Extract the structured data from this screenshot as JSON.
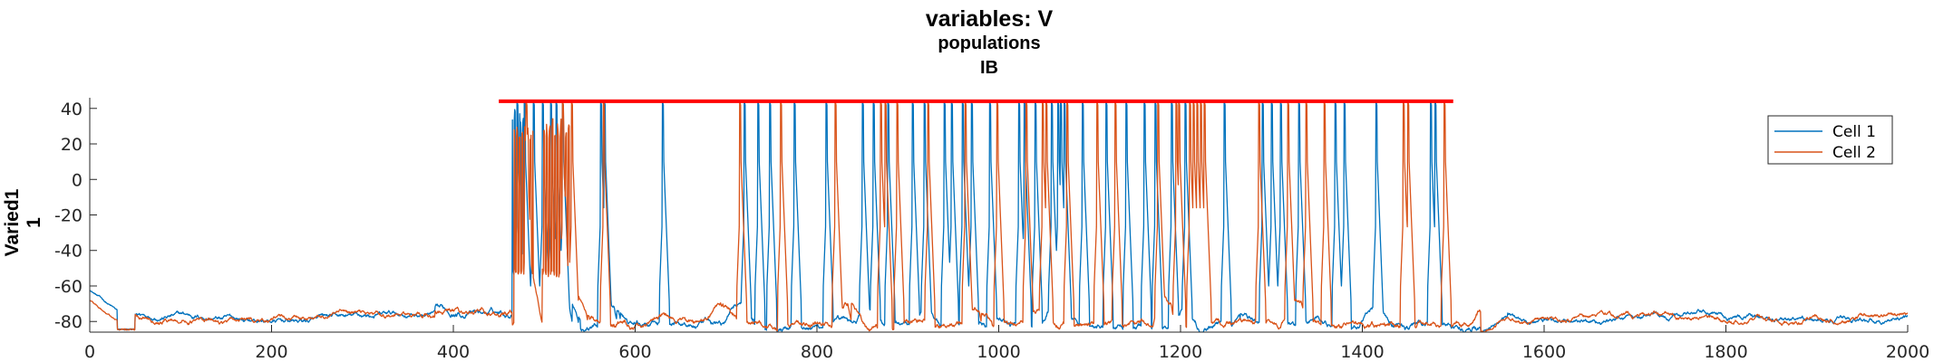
{
  "chart_data": {
    "type": "line",
    "title": "variables: V",
    "subtitle_lines": [
      "populations",
      "IB"
    ],
    "ylabel_lines": [
      "Varied1",
      "1"
    ],
    "xlabel": "",
    "xlim": [
      0,
      2000
    ],
    "ylim": [
      -86,
      46
    ],
    "xticks": [
      0,
      200,
      400,
      600,
      800,
      1000,
      1200,
      1400,
      1600,
      1800,
      2000
    ],
    "yticks": [
      40,
      20,
      0,
      -20,
      -40,
      -60,
      -80
    ],
    "grid": false,
    "legend_position": "top-right",
    "colors": {
      "cell1": "#0072BD",
      "cell2": "#D95319",
      "stim_bar": "#FF0000",
      "axis": "#262626"
    },
    "stimulus_bar": {
      "x": [
        450,
        1500
      ],
      "y": 44
    },
    "baseline_level": -78,
    "active_window": [
      465,
      1500
    ],
    "series": [
      {
        "name": "Cell 1",
        "color": "#0072BD",
        "spike_peak": 44,
        "spike_times": [
          470,
          478,
          488,
          498,
          507,
          513,
          520,
          562,
          566,
          630,
          720,
          735,
          748,
          775,
          810,
          850,
          862,
          878,
          905,
          918,
          940,
          948,
          960,
          970,
          990,
          1022,
          1028,
          1040,
          1058,
          1065,
          1068,
          1072,
          1092,
          1118,
          1140,
          1160,
          1172,
          1190,
          1205,
          1248,
          1290,
          1300,
          1310,
          1330,
          1370,
          1380,
          1415,
          1475,
          1480
        ],
        "burst": {
          "x": [
            465,
            520
          ],
          "envelope": [
            30,
            42
          ]
        }
      },
      {
        "name": "Cell 2",
        "color": "#D95319",
        "spike_peak": 44,
        "spike_times": [
          480,
          520,
          530,
          565,
          715,
          760,
          820,
          870,
          875,
          888,
          922,
          963,
          998,
          1030,
          1048,
          1052,
          1075,
          1108,
          1128,
          1175,
          1195,
          1198,
          1210,
          1214,
          1218,
          1222,
          1226,
          1286,
          1318,
          1338,
          1358,
          1445,
          1450,
          1490
        ],
        "burst": {
          "x": [
            467,
            530
          ],
          "envelope": [
            25,
            36
          ]
        }
      }
    ]
  }
}
